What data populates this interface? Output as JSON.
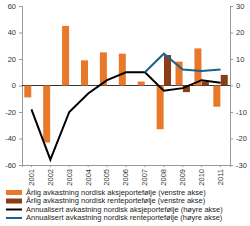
{
  "chart_data": {
    "type": "bar",
    "categories": [
      "2001",
      "2002",
      "2003",
      "2004",
      "2005",
      "2006",
      "2007",
      "2008",
      "2009",
      "2010",
      "2011"
    ],
    "series": [
      {
        "name": "Årlig avkastning nordisk aksjeportefølje (venstre akse)",
        "type": "bar",
        "color": "#e8792a",
        "values": [
          -9,
          -43,
          45,
          19,
          25,
          24,
          3,
          -33,
          18,
          28,
          -16
        ]
      },
      {
        "name": "Årlig avkastning nordisk renteportefølje (venstre akse)",
        "type": "bar",
        "color": "#8a3d17",
        "values": [
          null,
          null,
          null,
          null,
          null,
          null,
          null,
          23,
          -5,
          3,
          8
        ]
      },
      {
        "name": "Annualisert avkastning nordisk aksjeportefølje (høyre akse)",
        "type": "line",
        "axis": "y2",
        "color": "#000000",
        "values": [
          -9,
          -28,
          -10,
          -3,
          2,
          5,
          5,
          -2,
          -1,
          2,
          1
        ]
      },
      {
        "name": "Annualisert avkastning nordisk renteportefølje (høyre akse)",
        "type": "line",
        "axis": "y2",
        "color": "#1f5f8b",
        "values": [
          null,
          null,
          null,
          null,
          null,
          null,
          5,
          12,
          6,
          5.5,
          6
        ]
      }
    ],
    "ylim": [
      -60,
      60
    ],
    "yticks": [
      -60,
      -40,
      -20,
      0,
      20,
      40,
      60
    ],
    "y2lim": [
      -30,
      30
    ],
    "y2ticks": [
      -30,
      -20,
      -10,
      0,
      10,
      20,
      30
    ],
    "grid": false,
    "legend": "bottom"
  }
}
